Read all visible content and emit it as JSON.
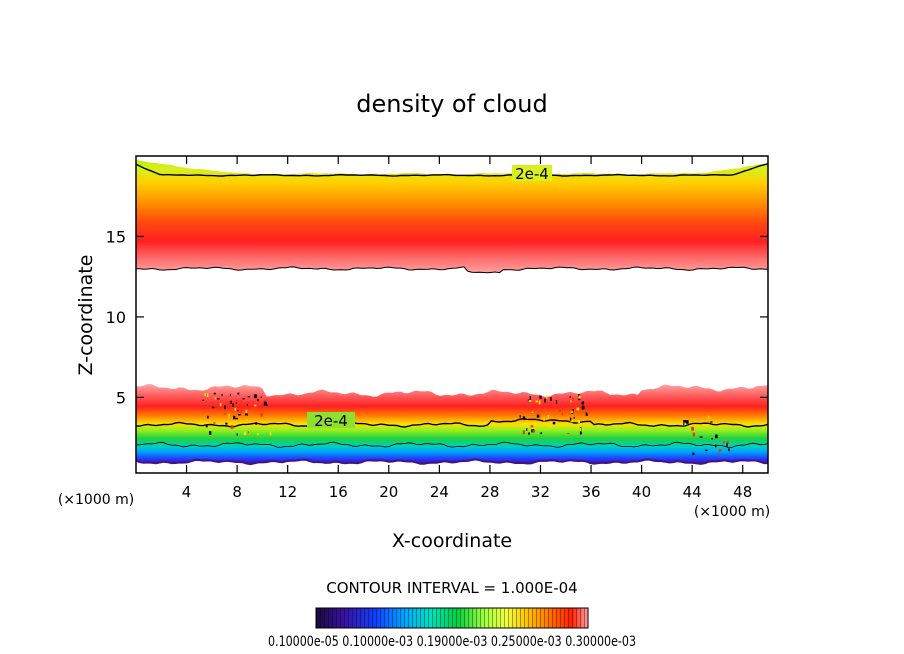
{
  "chart_data": {
    "type": "heatmap",
    "title": "density of cloud",
    "xlabel": "X-coordinate",
    "ylabel": "Z-coordinate",
    "x_unit": "(×1000 m)",
    "x_unit_right": "(×1000 m)",
    "xlim": [
      0,
      50
    ],
    "ylim": [
      0.3,
      20
    ],
    "x_ticks": [
      4,
      8,
      12,
      16,
      20,
      24,
      28,
      32,
      36,
      40,
      44,
      48
    ],
    "y_ticks": [
      5,
      10,
      15
    ],
    "grid": false,
    "contour_label": "2e-4",
    "contour_interval_text": "CONTOUR INTERVAL = 1.000E-04",
    "colorbar_label_text": "0.10000e-05 0.10000e-03 0.19000e-03 0.25000e-03 0.30000e-03",
    "colorbar_labels": [
      "0.10000e-05",
      "0.10000e-03",
      "0.19000e-03",
      "0.25000e-03",
      "0.30000e-03"
    ],
    "colormap": [
      "#1a0a3a",
      "#3a10a0",
      "#1040ff",
      "#00a0ff",
      "#00e0c0",
      "#00d040",
      "#a0ff40",
      "#f0ff40",
      "#ffc000",
      "#ff7000",
      "#ff2000",
      "#ffa0a0"
    ],
    "upper_layer": {
      "bottom_z": 13.0,
      "top_z": 19.7,
      "peak_z": 15.0,
      "contour_2e4_z": 18.8,
      "peak_value": 0.0003,
      "edge_value": 2e-05
    },
    "lower_layer": {
      "bottom_z": 1.0,
      "top_z": 5.6,
      "peak_z": 4.6,
      "contour_2e4_z": 3.3,
      "peak_value": 0.0003,
      "bottom_value": 1e-06
    }
  }
}
